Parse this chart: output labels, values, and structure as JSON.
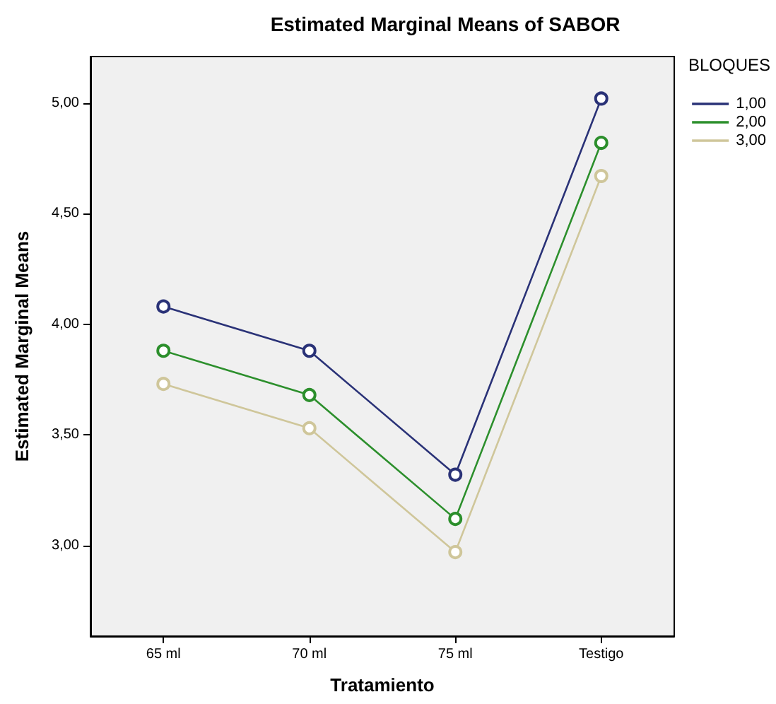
{
  "chart_data": {
    "type": "line",
    "title": "Estimated Marginal Means of SABOR",
    "xlabel": "Tratamiento",
    "ylabel": "Estimated Marginal Means",
    "legend_title": "BLOQUES",
    "categories": [
      "65 ml",
      "70 ml",
      "75 ml",
      "Testigo"
    ],
    "series": [
      {
        "name": "1,00",
        "color": "#2a3277",
        "values": [
          4.08,
          3.88,
          3.32,
          5.02
        ]
      },
      {
        "name": "2,00",
        "color": "#2c8f2c",
        "values": [
          3.88,
          3.68,
          3.12,
          4.82
        ]
      },
      {
        "name": "3,00",
        "color": "#cfc69a",
        "values": [
          3.73,
          3.53,
          2.97,
          4.67
        ]
      }
    ],
    "ylim": [
      2.59,
      5.21
    ],
    "yticks": [
      {
        "value": 3,
        "label": "3,00"
      },
      {
        "value": 3.5,
        "label": "3,50"
      },
      {
        "value": 4,
        "label": "4,00"
      },
      {
        "value": 4.5,
        "label": "4,50"
      },
      {
        "value": 5,
        "label": "5,00"
      }
    ],
    "grid": false,
    "legend": "top right",
    "marker": "circle",
    "line_style": "solid"
  }
}
